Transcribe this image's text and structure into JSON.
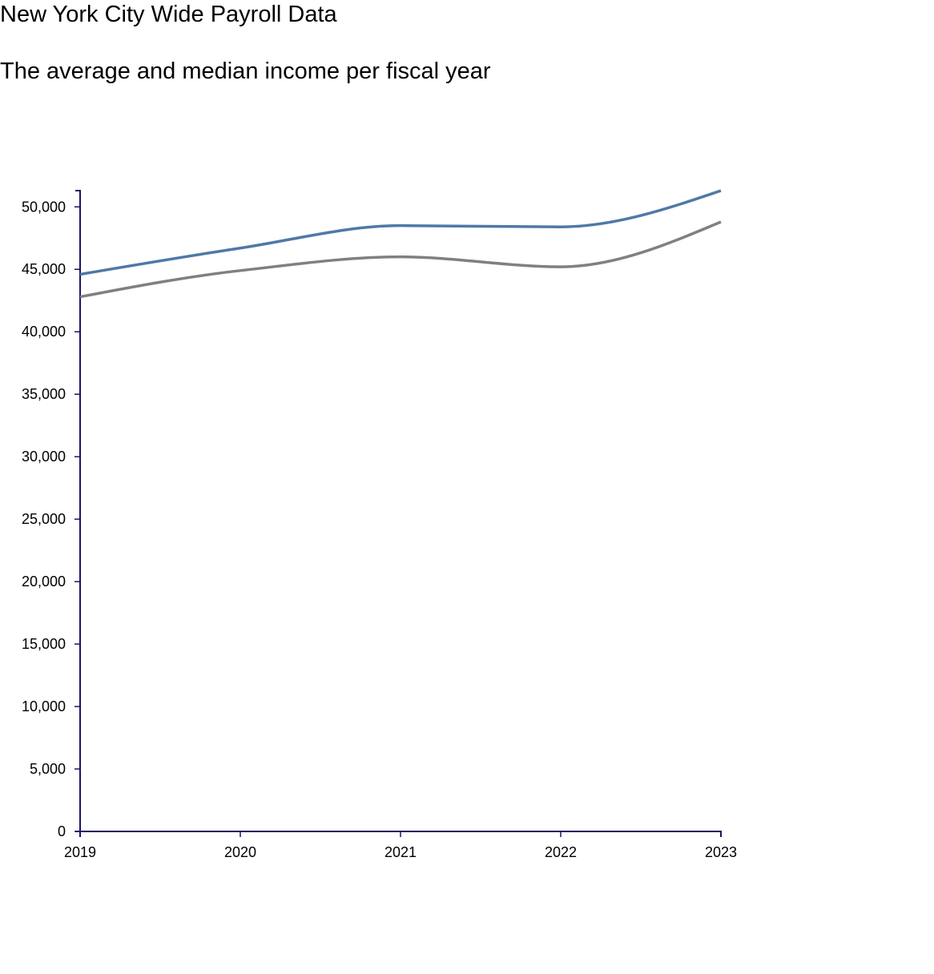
{
  "page": {
    "title": "New York City Wide Payroll Data",
    "subtitle": "The average and median income per fiscal year"
  },
  "chart_data": {
    "type": "line",
    "title": "New York City Wide Payroll Data",
    "subtitle": "The average and median income per fiscal year",
    "xlabel": "",
    "ylabel": "",
    "x": [
      2019,
      2020,
      2021,
      2022,
      2023
    ],
    "xlim": [
      2019,
      2023
    ],
    "ylim": [
      0,
      51300
    ],
    "y_ticks": [
      0,
      5000,
      10000,
      15000,
      20000,
      25000,
      30000,
      35000,
      40000,
      45000,
      50000
    ],
    "grid": false,
    "legend": "none",
    "curve": "smooth",
    "axis_color": "#1a1464",
    "series": [
      {
        "color": "#4e79a7",
        "values": [
          44600,
          46700,
          48500,
          48400,
          51300
        ]
      },
      {
        "color": "#808080",
        "values": [
          42800,
          44900,
          46000,
          45200,
          48800
        ]
      }
    ]
  }
}
